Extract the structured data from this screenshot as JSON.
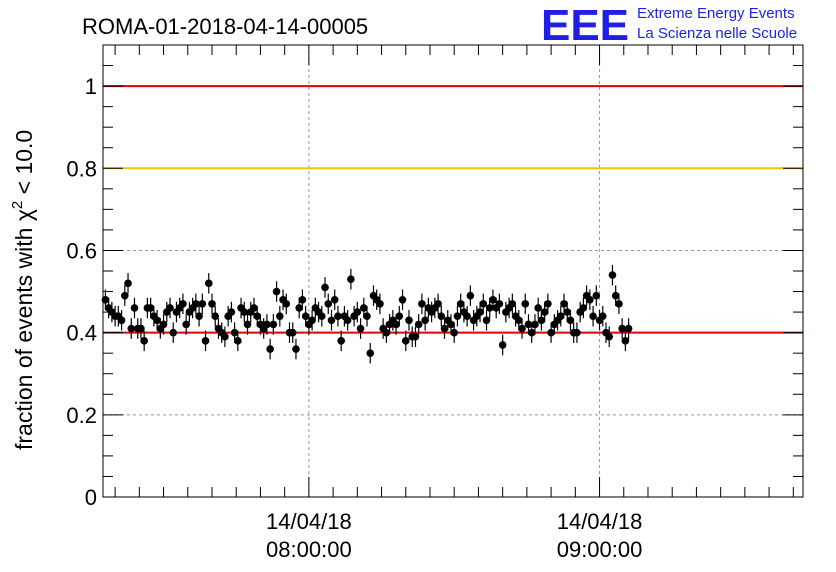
{
  "header": {
    "run_title": "ROMA-01-2018-04-14-00005",
    "logo_text": "EEE",
    "logo_line1": "Extreme Energy Events",
    "logo_line2": "La Scienza nelle Scuole"
  },
  "colors": {
    "logo": "#1f1fe8",
    "ref_red": "#e00000",
    "ref_gold": "#f5c400",
    "grid": "#999999",
    "marker": "#000000"
  },
  "chart_data": {
    "type": "scatter",
    "title": "ROMA-01-2018-04-14-00005",
    "ylabel_prefix": "fraction of events with χ",
    "ylabel_sup": "2",
    "ylabel_suffix": " < 10.0",
    "ylim": [
      0,
      1.1
    ],
    "yticks": [
      0,
      0.2,
      0.4,
      0.6,
      0.8,
      1
    ],
    "ytick_labels": [
      "0",
      "0.2",
      "0.4",
      "0.6",
      "0.8",
      "1"
    ],
    "xlim": [
      "2018-04-14 07:17:30",
      "2018-04-14 09:42:00"
    ],
    "xticks": [
      {
        "time": "2018-04-14 08:00:00",
        "date_label": "14/04/18",
        "time_label": "08:00:00"
      },
      {
        "time": "2018-04-14 09:00:00",
        "date_label": "14/04/18",
        "time_label": "09:00:00"
      }
    ],
    "grid": true,
    "reference_lines": [
      {
        "y": 1.0,
        "color": "#e00000"
      },
      {
        "y": 0.8,
        "color": "#f5c400"
      },
      {
        "y": 0.4,
        "color": "#e00000"
      }
    ],
    "series": [
      {
        "start": "2018-04-14 07:18:00",
        "step_seconds": 40,
        "y_error": 0.025,
        "y": [
          0.48,
          0.46,
          0.45,
          0.44,
          0.44,
          0.43,
          0.49,
          0.52,
          0.41,
          0.46,
          0.41,
          0.41,
          0.38,
          0.46,
          0.46,
          0.44,
          0.43,
          0.41,
          0.42,
          0.45,
          0.46,
          0.4,
          0.45,
          0.46,
          0.47,
          0.42,
          0.45,
          0.46,
          0.47,
          0.44,
          0.47,
          0.38,
          0.52,
          0.47,
          0.44,
          0.41,
          0.4,
          0.39,
          0.44,
          0.45,
          0.4,
          0.38,
          0.46,
          0.45,
          0.42,
          0.45,
          0.46,
          0.44,
          0.42,
          0.41,
          0.42,
          0.36,
          0.42,
          0.5,
          0.44,
          0.48,
          0.47,
          0.4,
          0.4,
          0.36,
          0.46,
          0.48,
          0.44,
          0.42,
          0.43,
          0.46,
          0.45,
          0.44,
          0.51,
          0.47,
          0.43,
          0.48,
          0.44,
          0.38,
          0.44,
          0.43,
          0.53,
          0.44,
          0.45,
          0.41,
          0.46,
          0.44,
          0.35,
          0.49,
          0.48,
          0.47,
          0.41,
          0.4,
          0.42,
          0.43,
          0.42,
          0.44,
          0.48,
          0.38,
          0.43,
          0.39,
          0.39,
          0.42,
          0.47,
          0.43,
          0.46,
          0.45,
          0.46,
          0.47,
          0.44,
          0.41,
          0.43,
          0.42,
          0.4,
          0.44,
          0.47,
          0.45,
          0.44,
          0.49,
          0.43,
          0.44,
          0.45,
          0.47,
          0.43,
          0.46,
          0.48,
          0.46,
          0.47,
          0.37,
          0.45,
          0.46,
          0.47,
          0.44,
          0.43,
          0.41,
          0.47,
          0.42,
          0.4,
          0.42,
          0.46,
          0.43,
          0.45,
          0.47,
          0.4,
          0.42,
          0.43,
          0.44,
          0.47,
          0.45,
          0.43,
          0.4,
          0.4,
          0.45,
          0.46,
          0.49,
          0.48,
          0.44,
          0.49,
          0.43,
          0.44,
          0.4,
          0.39,
          0.54,
          0.49,
          0.47,
          0.41,
          0.38,
          0.41
        ]
      }
    ]
  }
}
